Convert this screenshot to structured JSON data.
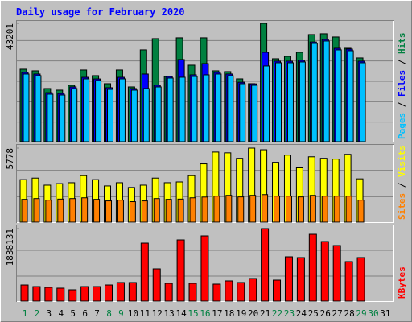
{
  "chart_data": {
    "type": "bar",
    "title": "Daily usage for February 2020",
    "axis_separator": "/",
    "categories": [
      "1",
      "2",
      "3",
      "4",
      "5",
      "6",
      "7",
      "8",
      "9",
      "10",
      "11",
      "12",
      "13",
      "14",
      "15",
      "16",
      "17",
      "18",
      "19",
      "20",
      "21",
      "22",
      "23",
      "24",
      "25",
      "26",
      "27",
      "28",
      "29",
      "30",
      "31"
    ],
    "category_colors": [
      "#008040",
      "#008040",
      "#000000",
      "#000000",
      "#000000",
      "#000000",
      "#000000",
      "#008040",
      "#008040",
      "#000000",
      "#000000",
      "#000000",
      "#000000",
      "#000000",
      "#008040",
      "#008040",
      "#000000",
      "#000000",
      "#000000",
      "#000000",
      "#000000",
      "#008040",
      "#008040",
      "#000000",
      "#000000",
      "#000000",
      "#000000",
      "#000000",
      "#008040",
      "#008040",
      "#000000"
    ],
    "panels": [
      {
        "ylim": [
          0,
          43201
        ],
        "yticks": [
          43201
        ],
        "grid": true,
        "series": [
          {
            "name": "Hits",
            "color": "#008040",
            "values": [
              26460,
              25870,
              19400,
              18820,
              20580,
              26170,
              24110,
              21170,
              26170,
              19990,
              33520,
              37630,
              23810,
              37930,
              27930,
              37930,
              25870,
              25580,
              22930,
              21170,
              43201,
              30280,
              31160,
              32630,
              39100,
              39400,
              38220,
              34100,
              30580,
              null,
              null
            ]
          },
          {
            "name": "Files",
            "color": "#0000ff",
            "values": [
              25300,
              24700,
              17900,
              17600,
              20000,
              23500,
              22900,
              19700,
              23500,
              19400,
              24700,
              20600,
              23800,
              29990,
              24400,
              28520,
              25300,
              24700,
              21700,
              21100,
              32630,
              29400,
              29400,
              29700,
              36400,
              37300,
              34100,
              33800,
              29400,
              null,
              null
            ]
          },
          {
            "name": "Pages",
            "color": "#00c0ff",
            "values": [
              24700,
              24110,
              17350,
              17050,
              19400,
              22930,
              22340,
              19110,
              22930,
              18820,
              19400,
              19990,
              23230,
              23520,
              23810,
              24400,
              24700,
              24110,
              21170,
              20580,
              27640,
              28810,
              28810,
              29110,
              35870,
              36750,
              33520,
              33220,
              28810,
              null,
              null
            ]
          }
        ]
      },
      {
        "ylim": [
          0,
          5778
        ],
        "yticks": [
          5778
        ],
        "grid": true,
        "series": [
          {
            "name": "Visits",
            "color": "#ffff00",
            "values": [
              3320,
              3440,
              2890,
              3010,
              3080,
              3630,
              3320,
              2830,
              3080,
              2710,
              2890,
              3440,
              3080,
              3140,
              3630,
              4550,
              5470,
              5410,
              4980,
              5778,
              5650,
              4670,
              5230,
              4240,
              5100,
              4980,
              4920,
              5290,
              3380,
              null,
              null
            ]
          },
          {
            "name": "Sites",
            "color": "#ff8000",
            "values": [
              1780,
              1840,
              1720,
              1800,
              1840,
              1900,
              1780,
              1660,
              1720,
              1600,
              1660,
              1840,
              1780,
              1800,
              1900,
              1960,
              2030,
              2090,
              1970,
              2090,
              2150,
              2030,
              2030,
              1970,
              2090,
              2030,
              2030,
              2030,
              1720,
              null,
              null
            ]
          }
        ]
      },
      {
        "ylim": [
          0,
          1838131
        ],
        "yticks": [
          1838131
        ],
        "grid": true,
        "series": [
          {
            "name": "KBytes",
            "color": "#ff0000",
            "values": [
              408000,
              367000,
              347000,
              327000,
              286000,
              367000,
              367000,
              408000,
              470000,
              470000,
              1470000,
              817000,
              449000,
              1552000,
              449000,
              1654000,
              429000,
              511000,
              470000,
              572000,
              1838131,
              531000,
              1123000,
              1103000,
              1695000,
              1511000,
              1409000,
              1001000,
              1103000,
              null,
              null
            ]
          }
        ]
      }
    ]
  }
}
